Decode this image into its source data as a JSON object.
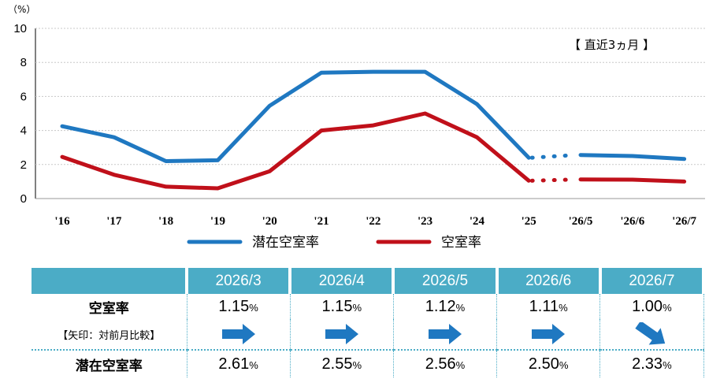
{
  "chart_data": {
    "type": "line",
    "unit_label": "（%）",
    "note": "【 直近3ヵ月 】",
    "yticks": [
      "10",
      "8",
      "6",
      "4",
      "2",
      "0"
    ],
    "ylim": [
      0,
      10
    ],
    "categories": [
      "'16",
      "'17",
      "'18",
      "'19",
      "'20",
      "'21",
      "'22",
      "'23",
      "'24",
      "'25",
      "'26/5",
      "'26/6",
      "'26/7"
    ],
    "series": [
      {
        "name": "潜在空室率",
        "color": "#1f78c1",
        "annual": [
          4.25,
          3.6,
          2.2,
          2.25,
          5.45,
          7.4,
          7.45,
          7.45,
          5.55,
          2.4
        ],
        "recent": [
          2.56,
          2.5,
          2.33
        ]
      },
      {
        "name": "空室率",
        "color": "#c0101a",
        "annual": [
          2.45,
          1.4,
          0.7,
          0.6,
          1.6,
          4.0,
          4.3,
          5.0,
          3.6,
          1.05
        ],
        "recent": [
          1.12,
          1.11,
          1.0
        ]
      }
    ]
  },
  "table": {
    "months": [
      "2026/3",
      "2026/4",
      "2026/5",
      "2026/6",
      "2026/7"
    ],
    "vacancy_label": "空室率",
    "arrow_note": "【矢印：対前月比較】",
    "potential_label": "潜在空室率",
    "pct_sign": "%",
    "vacancy_values": [
      "1.15",
      "1.15",
      "1.12",
      "1.11",
      "1.00"
    ],
    "potential_values": [
      "2.61",
      "2.55",
      "2.56",
      "2.50",
      "2.33"
    ],
    "arrows": [
      "right-arrow-icon",
      "right-arrow-icon",
      "right-arrow-icon",
      "right-arrow-icon",
      "down-right-arrow-icon"
    ],
    "header_color": "#4bacc6",
    "arrow_color": "#1f78c1"
  }
}
